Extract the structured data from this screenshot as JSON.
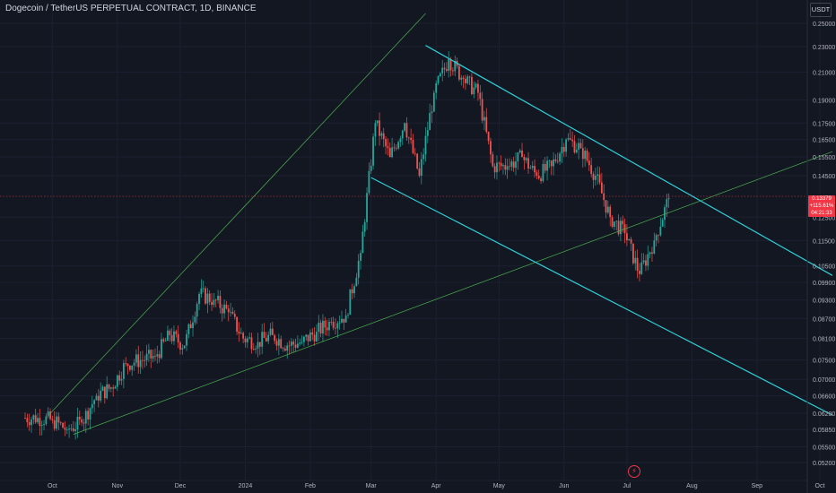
{
  "header": {
    "title": "Dogecoin / TetherUS PERPETUAL CONTRACT, 1D, BINANCE",
    "currency": "USDT"
  },
  "current_price": {
    "price": "0.13379",
    "change": "+115.61%",
    "countdown": "04:21:33",
    "color": "#f23645"
  },
  "colors": {
    "background": "#131722",
    "up": "#26a69a",
    "down": "#ef5350",
    "channel": "#2ed0d8",
    "trendline": "#4caf50",
    "axis_text": "#b2b5be"
  },
  "icons": {
    "event_marker": "lightning-icon"
  },
  "chart_data": {
    "type": "candlestick",
    "title": "Dogecoin / TetherUS PERPETUAL CONTRACT, 1D, BINANCE",
    "yscale": "log",
    "ylim": [
      0.0515,
      0.259
    ],
    "y_ticks": [
      "0.25000",
      "0.23000",
      "0.21000",
      "0.19000",
      "0.17500",
      "0.16500",
      "0.15500",
      "0.14500",
      "0.12500",
      "0.11500",
      "0.10500",
      "0.09900",
      "0.09300",
      "0.08700",
      "0.08100",
      "0.07500",
      "0.07000",
      "0.06600",
      "0.06200",
      "0.05850",
      "0.05500",
      "0.05200"
    ],
    "x_ticks": [
      {
        "label": "Oct",
        "date": "2023-10-01"
      },
      {
        "label": "Nov",
        "date": "2023-11-01"
      },
      {
        "label": "Dec",
        "date": "2023-12-01"
      },
      {
        "label": "2024",
        "date": "2024-01-01"
      },
      {
        "label": "Feb",
        "date": "2024-02-01"
      },
      {
        "label": "Mar",
        "date": "2024-03-01"
      },
      {
        "label": "Apr",
        "date": "2024-04-01"
      },
      {
        "label": "May",
        "date": "2024-05-01"
      },
      {
        "label": "Jun",
        "date": "2024-06-01"
      },
      {
        "label": "Jul",
        "date": "2024-07-01"
      },
      {
        "label": "Aug",
        "date": "2024-08-01"
      },
      {
        "label": "Sep",
        "date": "2024-09-01"
      },
      {
        "label": "Oct",
        "date": "2024-10-01"
      }
    ],
    "closes": [
      {
        "date": "2023-09-18",
        "close": 0.061
      },
      {
        "date": "2023-09-25",
        "close": 0.061
      },
      {
        "date": "2023-10-02",
        "close": 0.0605
      },
      {
        "date": "2023-10-09",
        "close": 0.0585
      },
      {
        "date": "2023-10-16",
        "close": 0.06
      },
      {
        "date": "2023-10-23",
        "close": 0.066
      },
      {
        "date": "2023-10-30",
        "close": 0.068
      },
      {
        "date": "2023-11-06",
        "close": 0.074
      },
      {
        "date": "2023-11-13",
        "close": 0.075
      },
      {
        "date": "2023-11-20",
        "close": 0.076
      },
      {
        "date": "2023-11-27",
        "close": 0.082
      },
      {
        "date": "2023-12-04",
        "close": 0.079
      },
      {
        "date": "2023-12-11",
        "close": 0.095
      },
      {
        "date": "2023-12-18",
        "close": 0.093
      },
      {
        "date": "2023-12-25",
        "close": 0.089
      },
      {
        "date": "2024-01-01",
        "close": 0.081
      },
      {
        "date": "2024-01-08",
        "close": 0.08
      },
      {
        "date": "2024-01-15",
        "close": 0.082
      },
      {
        "date": "2024-01-22",
        "close": 0.079
      },
      {
        "date": "2024-01-29",
        "close": 0.08
      },
      {
        "date": "2024-02-05",
        "close": 0.083
      },
      {
        "date": "2024-02-12",
        "close": 0.086
      },
      {
        "date": "2024-02-19",
        "close": 0.088
      },
      {
        "date": "2024-02-26",
        "close": 0.11
      },
      {
        "date": "2024-03-04",
        "close": 0.175
      },
      {
        "date": "2024-03-11",
        "close": 0.155
      },
      {
        "date": "2024-03-18",
        "close": 0.175
      },
      {
        "date": "2024-03-25",
        "close": 0.145
      },
      {
        "date": "2024-04-01",
        "close": 0.195
      },
      {
        "date": "2024-04-08",
        "close": 0.22
      },
      {
        "date": "2024-04-15",
        "close": 0.205
      },
      {
        "date": "2024-04-22",
        "close": 0.195
      },
      {
        "date": "2024-04-29",
        "close": 0.15
      },
      {
        "date": "2024-05-06",
        "close": 0.15
      },
      {
        "date": "2024-05-13",
        "close": 0.155
      },
      {
        "date": "2024-05-20",
        "close": 0.145
      },
      {
        "date": "2024-05-27",
        "close": 0.15
      },
      {
        "date": "2024-06-03",
        "close": 0.165
      },
      {
        "date": "2024-06-10",
        "close": 0.16
      },
      {
        "date": "2024-06-17",
        "close": 0.145
      },
      {
        "date": "2024-06-24",
        "close": 0.125
      },
      {
        "date": "2024-07-01",
        "close": 0.118
      },
      {
        "date": "2024-07-08",
        "close": 0.102
      },
      {
        "date": "2024-07-15",
        "close": 0.115
      },
      {
        "date": "2024-07-22",
        "close": 0.1338
      }
    ],
    "trendlines": [
      {
        "kind": "support",
        "color": "#4caf50",
        "from": {
          "date": "2023-10-11",
          "price": 0.0575
        },
        "to": {
          "date": "2024-10-07",
          "price": 0.158
        }
      },
      {
        "kind": "upper",
        "color": "#4caf50",
        "from": {
          "date": "2023-09-30",
          "price": 0.062
        },
        "to": {
          "date": "2024-03-27",
          "price": 0.259
        }
      },
      {
        "kind": "channel-top",
        "color": "#2ed0d8",
        "from": {
          "date": "2024-03-27",
          "price": 0.231
        },
        "to": {
          "date": "2024-10-07",
          "price": 0.1015
        }
      },
      {
        "kind": "channel-bottom",
        "color": "#2ed0d8",
        "from": {
          "date": "2024-03-01",
          "price": 0.144
        },
        "to": {
          "date": "2024-10-07",
          "price": 0.0616
        }
      }
    ]
  }
}
